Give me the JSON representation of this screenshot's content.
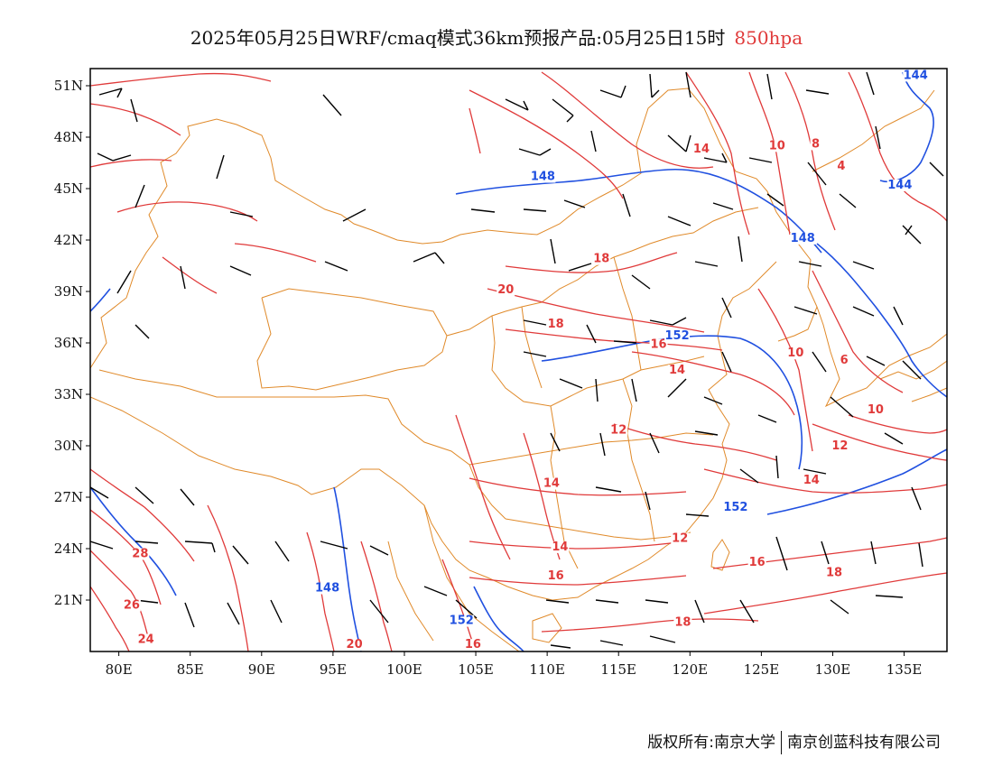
{
  "title": {
    "main": "2025年05月25日WRF/cmaq模式36km预报产品:05月25日15时",
    "level": "850hpa"
  },
  "footer": {
    "copyright": "版权所有:南京大学",
    "company": "南京创蓝科技有限公司"
  },
  "map": {
    "projection": "lat-lon",
    "lon_range": [
      78,
      138
    ],
    "lat_range": [
      18,
      52
    ],
    "lon_ticks": [
      {
        "value": 80,
        "label": "80E"
      },
      {
        "value": 85,
        "label": "85E"
      },
      {
        "value": 90,
        "label": "90E"
      },
      {
        "value": 95,
        "label": "95E"
      },
      {
        "value": 100,
        "label": "100E"
      },
      {
        "value": 105,
        "label": "105E"
      },
      {
        "value": 110,
        "label": "110E"
      },
      {
        "value": 115,
        "label": "115E"
      },
      {
        "value": 120,
        "label": "120E"
      },
      {
        "value": 125,
        "label": "125E"
      },
      {
        "value": 130,
        "label": "130E"
      },
      {
        "value": 135,
        "label": "135E"
      }
    ],
    "lat_ticks": [
      {
        "value": 51,
        "label": "51N"
      },
      {
        "value": 48,
        "label": "48N"
      },
      {
        "value": 45,
        "label": "45N"
      },
      {
        "value": 42,
        "label": "42N"
      },
      {
        "value": 39,
        "label": "39N"
      },
      {
        "value": 36,
        "label": "36N"
      },
      {
        "value": 33,
        "label": "33N"
      },
      {
        "value": 30,
        "label": "30N"
      },
      {
        "value": 27,
        "label": "27N"
      },
      {
        "value": 24,
        "label": "24N"
      },
      {
        "value": 21,
        "label": "21N"
      }
    ],
    "colors": {
      "temperature": "#e03a3a",
      "geopotential": "#2050e0",
      "boundaries": "#e08a2a",
      "wind_barbs": "#000000",
      "title_level": "#e03a3a"
    },
    "temperature_labels": [
      {
        "text": "14",
        "lon": 120.8,
        "lat": 47.1
      },
      {
        "text": "10",
        "lon": 126.1,
        "lat": 47.3
      },
      {
        "text": "8",
        "lon": 128.8,
        "lat": 47.4
      },
      {
        "text": "4",
        "lon": 130.6,
        "lat": 46.1
      },
      {
        "text": "18",
        "lon": 113.8,
        "lat": 40.7
      },
      {
        "text": "20",
        "lon": 107.1,
        "lat": 38.9
      },
      {
        "text": "18",
        "lon": 110.6,
        "lat": 36.9
      },
      {
        "text": "16",
        "lon": 117.8,
        "lat": 35.7
      },
      {
        "text": "14",
        "lon": 119.1,
        "lat": 34.2
      },
      {
        "text": "10",
        "lon": 127.4,
        "lat": 35.2
      },
      {
        "text": "6",
        "lon": 130.8,
        "lat": 34.8
      },
      {
        "text": "10",
        "lon": 133.0,
        "lat": 31.9
      },
      {
        "text": "12",
        "lon": 115.0,
        "lat": 30.7
      },
      {
        "text": "12",
        "lon": 130.5,
        "lat": 29.8
      },
      {
        "text": "14",
        "lon": 110.3,
        "lat": 27.6
      },
      {
        "text": "14",
        "lon": 128.5,
        "lat": 27.8
      },
      {
        "text": "14",
        "lon": 110.9,
        "lat": 23.9
      },
      {
        "text": "12",
        "lon": 119.3,
        "lat": 24.4
      },
      {
        "text": "16",
        "lon": 124.7,
        "lat": 23.0
      },
      {
        "text": "16",
        "lon": 110.6,
        "lat": 22.2
      },
      {
        "text": "18",
        "lon": 130.1,
        "lat": 22.4
      },
      {
        "text": "18",
        "lon": 119.5,
        "lat": 19.5
      },
      {
        "text": "28",
        "lon": 81.5,
        "lat": 23.5
      },
      {
        "text": "26",
        "lon": 80.9,
        "lat": 20.5
      },
      {
        "text": "24",
        "lon": 81.9,
        "lat": 18.5
      },
      {
        "text": "20",
        "lon": 96.5,
        "lat": 18.2
      },
      {
        "text": "16",
        "lon": 104.8,
        "lat": 18.2
      }
    ],
    "geopotential_labels": [
      {
        "text": "144",
        "lon": 135.8,
        "lat": 51.4
      },
      {
        "text": "148",
        "lon": 109.7,
        "lat": 45.5
      },
      {
        "text": "144",
        "lon": 134.7,
        "lat": 45.0
      },
      {
        "text": "148",
        "lon": 127.9,
        "lat": 41.9
      },
      {
        "text": "152",
        "lon": 119.1,
        "lat": 36.2
      },
      {
        "text": "152",
        "lon": 123.2,
        "lat": 26.2
      },
      {
        "text": "148",
        "lon": 94.6,
        "lat": 21.5
      },
      {
        "text": "152",
        "lon": 104.0,
        "lat": 19.6
      }
    ]
  }
}
